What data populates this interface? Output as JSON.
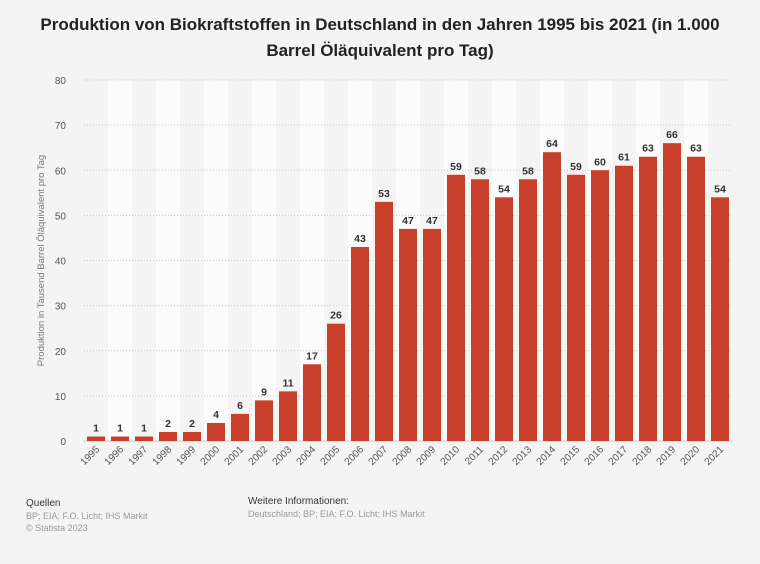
{
  "title": "Produktion von Biokraftstoffen in Deutschland in den Jahren 1995 bis 2021 (in 1.000 Barrel Öläquivalent pro Tag)",
  "chart_data": {
    "type": "bar",
    "categories": [
      "1995",
      "1996",
      "1997",
      "1998",
      "1999",
      "2000",
      "2001",
      "2002",
      "2003",
      "2004",
      "2005",
      "2006",
      "2007",
      "2008",
      "2009",
      "2010",
      "2011",
      "2012",
      "2013",
      "2014",
      "2015",
      "2016",
      "2017",
      "2018",
      "2019",
      "2020",
      "2021"
    ],
    "values": [
      1,
      1,
      1,
      2,
      2,
      4,
      6,
      9,
      11,
      17,
      26,
      43,
      53,
      47,
      47,
      59,
      58,
      54,
      58,
      64,
      59,
      60,
      61,
      63,
      66,
      63,
      54
    ],
    "ylabel": "Produktion in Tausend Barrel Öläquivalent pro Tag",
    "ylim": [
      0,
      80
    ],
    "yticks": [
      0,
      10,
      20,
      30,
      40,
      50,
      60,
      70,
      80
    ],
    "bar_color": "#c8402a",
    "data_labels": true,
    "grid": true
  },
  "footer": {
    "sources_heading": "Quellen",
    "sources_text": "BP; EIA; F.O. Licht; IHS Markit",
    "copyright": "© Statista 2023",
    "info_heading": "Weitere Informationen:",
    "info_text": "Deutschland; BP; EIA; F.O. Licht; IHS Markit"
  }
}
